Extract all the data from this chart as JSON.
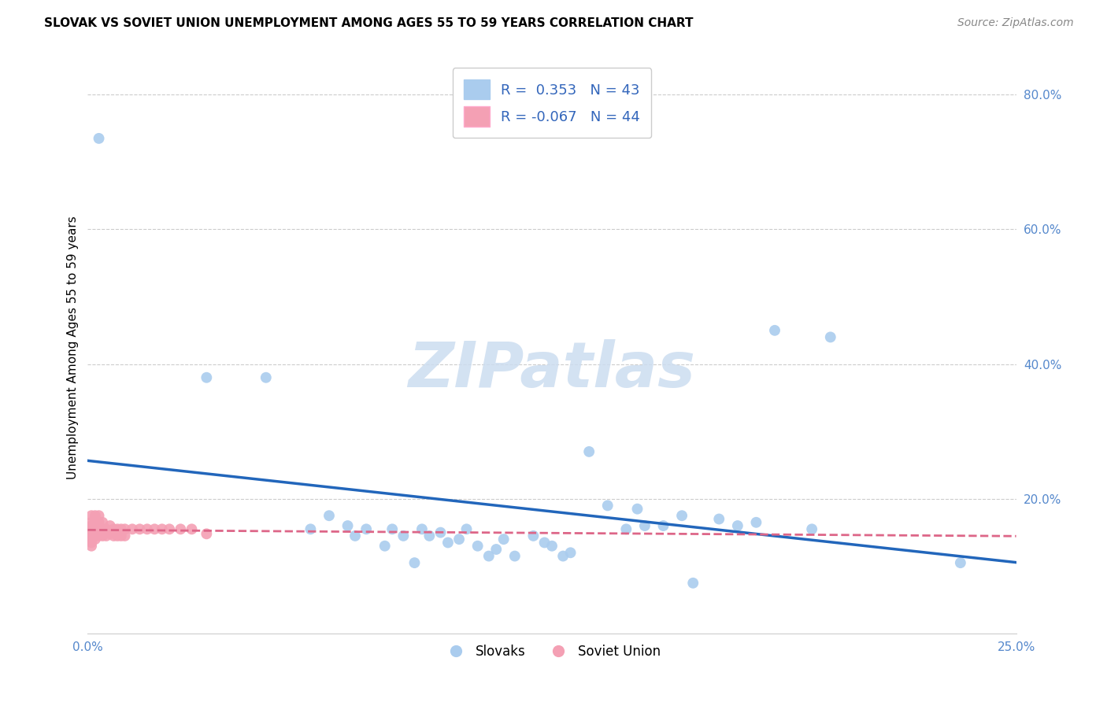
{
  "title": "SLOVAK VS SOVIET UNION UNEMPLOYMENT AMONG AGES 55 TO 59 YEARS CORRELATION CHART",
  "source": "Source: ZipAtlas.com",
  "ylabel": "Unemployment Among Ages 55 to 59 years",
  "xlim": [
    0.0,
    0.25
  ],
  "ylim": [
    0.0,
    0.85
  ],
  "yticks": [
    0.2,
    0.4,
    0.6,
    0.8
  ],
  "ytick_labels": [
    "20.0%",
    "40.0%",
    "60.0%",
    "80.0%"
  ],
  "xticks": [
    0.0,
    0.05,
    0.1,
    0.15,
    0.2,
    0.25
  ],
  "xtick_labels": [
    "0.0%",
    "",
    "",
    "",
    "",
    "25.0%"
  ],
  "grid_color": "#cccccc",
  "background_color": "#ffffff",
  "legend_r_slovak": " 0.353",
  "legend_n_slovak": "43",
  "legend_r_soviet": "-0.067",
  "legend_n_soviet": "44",
  "slovak_color": "#aaccee",
  "soviet_color": "#f4a0b4",
  "slovak_line_color": "#2266bb",
  "soviet_line_color": "#dd6688",
  "slovak_scatter": [
    [
      0.003,
      0.735
    ],
    [
      0.032,
      0.38
    ],
    [
      0.048,
      0.38
    ],
    [
      0.06,
      0.155
    ],
    [
      0.065,
      0.175
    ],
    [
      0.07,
      0.16
    ],
    [
      0.072,
      0.145
    ],
    [
      0.075,
      0.155
    ],
    [
      0.08,
      0.13
    ],
    [
      0.082,
      0.155
    ],
    [
      0.085,
      0.145
    ],
    [
      0.088,
      0.105
    ],
    [
      0.09,
      0.155
    ],
    [
      0.092,
      0.145
    ],
    [
      0.095,
      0.15
    ],
    [
      0.097,
      0.135
    ],
    [
      0.1,
      0.14
    ],
    [
      0.102,
      0.155
    ],
    [
      0.105,
      0.13
    ],
    [
      0.108,
      0.115
    ],
    [
      0.11,
      0.125
    ],
    [
      0.112,
      0.14
    ],
    [
      0.115,
      0.115
    ],
    [
      0.12,
      0.145
    ],
    [
      0.123,
      0.135
    ],
    [
      0.125,
      0.13
    ],
    [
      0.128,
      0.115
    ],
    [
      0.13,
      0.12
    ],
    [
      0.135,
      0.27
    ],
    [
      0.14,
      0.19
    ],
    [
      0.145,
      0.155
    ],
    [
      0.148,
      0.185
    ],
    [
      0.15,
      0.16
    ],
    [
      0.155,
      0.16
    ],
    [
      0.16,
      0.175
    ],
    [
      0.163,
      0.075
    ],
    [
      0.17,
      0.17
    ],
    [
      0.175,
      0.16
    ],
    [
      0.18,
      0.165
    ],
    [
      0.185,
      0.45
    ],
    [
      0.195,
      0.155
    ],
    [
      0.2,
      0.44
    ],
    [
      0.235,
      0.105
    ]
  ],
  "soviet_scatter": [
    [
      0.001,
      0.175
    ],
    [
      0.001,
      0.165
    ],
    [
      0.001,
      0.16
    ],
    [
      0.001,
      0.155
    ],
    [
      0.001,
      0.15
    ],
    [
      0.001,
      0.145
    ],
    [
      0.001,
      0.14
    ],
    [
      0.001,
      0.135
    ],
    [
      0.001,
      0.13
    ],
    [
      0.002,
      0.175
    ],
    [
      0.002,
      0.165
    ],
    [
      0.002,
      0.16
    ],
    [
      0.002,
      0.155
    ],
    [
      0.002,
      0.145
    ],
    [
      0.002,
      0.14
    ],
    [
      0.003,
      0.175
    ],
    [
      0.003,
      0.165
    ],
    [
      0.003,
      0.16
    ],
    [
      0.003,
      0.155
    ],
    [
      0.003,
      0.145
    ],
    [
      0.004,
      0.165
    ],
    [
      0.004,
      0.155
    ],
    [
      0.004,
      0.145
    ],
    [
      0.005,
      0.155
    ],
    [
      0.005,
      0.145
    ],
    [
      0.006,
      0.16
    ],
    [
      0.006,
      0.148
    ],
    [
      0.007,
      0.155
    ],
    [
      0.007,
      0.145
    ],
    [
      0.008,
      0.155
    ],
    [
      0.008,
      0.145
    ],
    [
      0.009,
      0.155
    ],
    [
      0.009,
      0.145
    ],
    [
      0.01,
      0.155
    ],
    [
      0.01,
      0.145
    ],
    [
      0.012,
      0.155
    ],
    [
      0.014,
      0.155
    ],
    [
      0.016,
      0.155
    ],
    [
      0.018,
      0.155
    ],
    [
      0.02,
      0.155
    ],
    [
      0.022,
      0.155
    ],
    [
      0.025,
      0.155
    ],
    [
      0.028,
      0.155
    ],
    [
      0.032,
      0.148
    ]
  ],
  "title_fontsize": 11,
  "axis_label_fontsize": 11,
  "tick_fontsize": 11,
  "legend_fontsize": 13,
  "source_fontsize": 10,
  "watermark_text": "ZIPatlas",
  "watermark_color": "#ccddf0"
}
